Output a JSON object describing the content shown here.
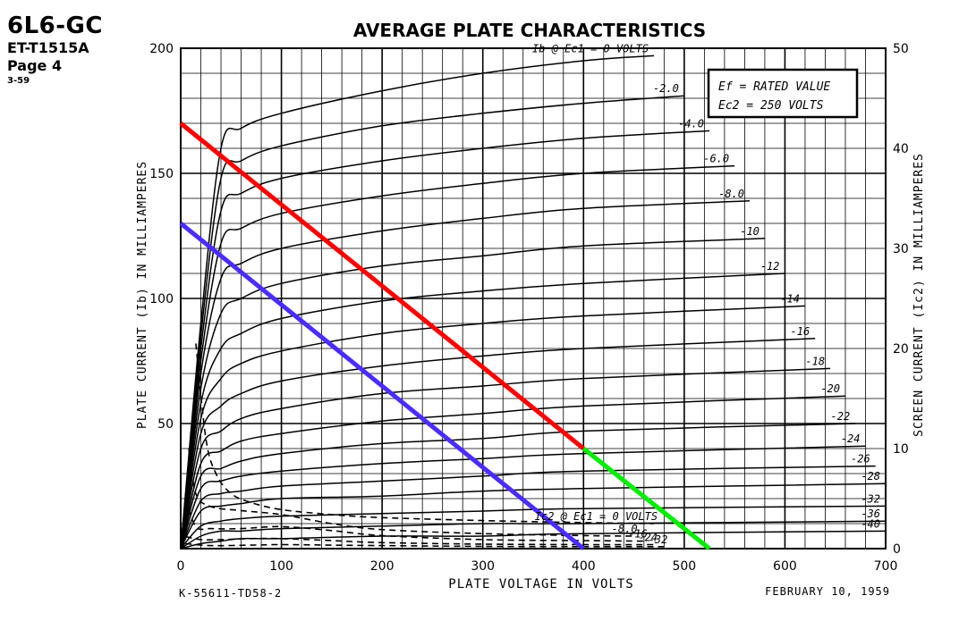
{
  "header": {
    "tube": "6L6-GC",
    "code": "ET-T1515A",
    "page": "Page 4",
    "rev": "3-59"
  },
  "footer": {
    "left": "K-55611-TD58-2",
    "right": "FEBRUARY 10, 1959"
  },
  "legend": {
    "line1": "Ef = RATED VALUE",
    "line2": "Ec2 = 250 VOLTS"
  },
  "chart_data": {
    "type": "line",
    "title": "AVERAGE PLATE CHARACTERISTICS",
    "xlabel": "PLATE VOLTAGE IN VOLTS",
    "ylabel": "PLATE CURRENT (Ib) IN MILLIAMPERES",
    "y2label": "SCREEN CURRENT (Ic2) IN MILLIAMPERES",
    "xlim": [
      0,
      700
    ],
    "ylim": [
      0,
      200
    ],
    "y2lim": [
      0,
      50
    ],
    "xticks": [
      "0",
      "100",
      "200",
      "300",
      "400",
      "500",
      "600",
      "700"
    ],
    "yticks": [
      "50",
      "100",
      "150",
      "200"
    ],
    "y2ticks": [
      "0",
      "10",
      "20",
      "30",
      "40",
      "50"
    ],
    "grid": true,
    "plate_curves": [
      {
        "label": "Ib @ Ec1 = 0 VOLTS",
        "grid_voltage": 0,
        "x": [
          0,
          20,
          40,
          60,
          100,
          200,
          300,
          400,
          470
        ],
        "y": [
          0,
          90,
          160,
          168,
          174,
          183,
          190,
          195,
          197
        ]
      },
      {
        "label": "-2.0",
        "grid_voltage": -2,
        "x": [
          0,
          20,
          40,
          60,
          100,
          200,
          300,
          400,
          500
        ],
        "y": [
          0,
          85,
          148,
          155,
          161,
          169,
          174,
          178,
          181
        ]
      },
      {
        "label": "-4.0",
        "grid_voltage": -4,
        "x": [
          0,
          20,
          40,
          60,
          100,
          200,
          300,
          400,
          525
        ],
        "y": [
          0,
          80,
          135,
          142,
          148,
          155,
          160,
          164,
          167
        ]
      },
      {
        "label": "-6.0",
        "grid_voltage": -6,
        "x": [
          0,
          20,
          40,
          60,
          100,
          200,
          300,
          400,
          550
        ],
        "y": [
          0,
          75,
          122,
          128,
          134,
          141,
          146,
          150,
          153
        ]
      },
      {
        "label": "-8.0",
        "grid_voltage": -8,
        "x": [
          0,
          20,
          40,
          60,
          100,
          200,
          300,
          400,
          565
        ],
        "y": [
          0,
          70,
          108,
          114,
          120,
          127,
          132,
          136,
          139
        ]
      },
      {
        "label": "-10",
        "grid_voltage": -10,
        "x": [
          0,
          20,
          40,
          60,
          100,
          200,
          300,
          400,
          580
        ],
        "y": [
          0,
          64,
          94,
          100,
          106,
          113,
          117,
          121,
          124
        ]
      },
      {
        "label": "-12",
        "grid_voltage": -12,
        "x": [
          0,
          20,
          40,
          60,
          100,
          200,
          300,
          400,
          600
        ],
        "y": [
          0,
          58,
          80,
          86,
          92,
          99,
          103,
          106,
          110
        ]
      },
      {
        "label": "-14",
        "grid_voltage": -14,
        "x": [
          0,
          20,
          40,
          60,
          100,
          200,
          300,
          400,
          620
        ],
        "y": [
          0,
          52,
          68,
          74,
          79,
          86,
          90,
          93,
          97
        ]
      },
      {
        "label": "-16",
        "grid_voltage": -16,
        "x": [
          0,
          20,
          40,
          60,
          100,
          200,
          300,
          400,
          630
        ],
        "y": [
          0,
          46,
          57,
          62,
          67,
          73,
          77,
          80,
          84
        ]
      },
      {
        "label": "-18",
        "grid_voltage": -18,
        "x": [
          0,
          20,
          40,
          60,
          100,
          200,
          300,
          400,
          645
        ],
        "y": [
          0,
          40,
          47,
          52,
          56,
          62,
          65,
          68,
          72
        ]
      },
      {
        "label": "-20",
        "grid_voltage": -20,
        "x": [
          0,
          20,
          40,
          60,
          100,
          200,
          300,
          400,
          660
        ],
        "y": [
          0,
          34,
          39,
          43,
          46,
          51,
          54,
          57,
          61
        ]
      },
      {
        "label": "-22",
        "grid_voltage": -22,
        "x": [
          0,
          20,
          40,
          60,
          100,
          200,
          300,
          400,
          670
        ],
        "y": [
          0,
          29,
          32,
          35,
          38,
          42,
          44,
          47,
          50
        ]
      },
      {
        "label": "-24",
        "grid_voltage": -24,
        "x": [
          0,
          20,
          40,
          60,
          100,
          200,
          300,
          400,
          680
        ],
        "y": [
          0,
          24,
          27,
          29,
          31,
          34,
          36,
          38,
          41
        ]
      },
      {
        "label": "-26",
        "grid_voltage": -26,
        "x": [
          0,
          20,
          40,
          60,
          100,
          200,
          300,
          400,
          690
        ],
        "y": [
          0,
          19,
          22,
          23,
          25,
          27,
          29,
          31,
          33
        ]
      },
      {
        "label": "-28",
        "grid_voltage": -28,
        "x": [
          0,
          20,
          40,
          60,
          100,
          200,
          300,
          400,
          700
        ],
        "y": [
          0,
          15,
          17,
          18,
          20,
          21,
          23,
          24,
          26
        ]
      },
      {
        "label": "-32",
        "grid_voltage": -32,
        "x": [
          0,
          20,
          40,
          60,
          100,
          200,
          300,
          400,
          700
        ],
        "y": [
          0,
          9,
          11,
          12,
          13,
          14,
          15,
          16,
          17
        ]
      },
      {
        "label": "-36",
        "grid_voltage": -36,
        "x": [
          0,
          20,
          40,
          60,
          100,
          200,
          300,
          400,
          700
        ],
        "y": [
          0,
          5,
          7,
          7,
          8,
          9,
          10,
          10,
          11
        ]
      },
      {
        "label": "-40",
        "grid_voltage": -40,
        "x": [
          0,
          20,
          40,
          60,
          100,
          200,
          300,
          400,
          700
        ],
        "y": [
          0,
          2,
          3,
          4,
          4,
          5,
          5,
          6,
          7
        ]
      }
    ],
    "screen_curves": [
      {
        "label": "Ic2 @ Ec1 = 0 VOLTS",
        "style": "dashed",
        "x": [
          15,
          25,
          35,
          50,
          70,
          100,
          150,
          200,
          300,
          400,
          470
        ],
        "y": [
          20.5,
          11,
          7.5,
          5.5,
          4.6,
          3.9,
          3.4,
          3.1,
          2.8,
          2.6,
          2.5
        ]
      },
      {
        "label": "-8.0",
        "style": "dashed",
        "x": [
          8,
          15,
          30,
          60,
          100,
          150,
          200,
          300,
          400,
          450
        ],
        "y": [
          10,
          5.5,
          4.2,
          3.8,
          3.4,
          2.5,
          1.9,
          1.5,
          1.3,
          1.25
        ]
      },
      {
        "label": "-16",
        "style": "dashed",
        "x": [
          5,
          15,
          30,
          60,
          100,
          150,
          200,
          300,
          400,
          460
        ],
        "y": [
          5,
          2.2,
          2.0,
          2.0,
          2.2,
          1.8,
          1.3,
          0.9,
          0.8,
          0.75
        ]
      },
      {
        "label": "-24",
        "style": "dashed",
        "x": [
          5,
          20,
          40,
          70,
          100,
          150,
          200,
          300,
          400,
          470
        ],
        "y": [
          1.2,
          0.9,
          0.9,
          1.0,
          1.0,
          0.8,
          0.6,
          0.45,
          0.4,
          0.4
        ]
      },
      {
        "label": "-32",
        "style": "dashed",
        "x": [
          5,
          30,
          70,
          100,
          150,
          200,
          300,
          400,
          480
        ],
        "y": [
          0.5,
          0.3,
          0.35,
          0.4,
          0.35,
          0.3,
          0.22,
          0.2,
          0.2
        ]
      }
    ],
    "load_lines": [
      {
        "color": "#ff0000",
        "x": [
          0,
          400
        ],
        "y": [
          170,
          40
        ]
      },
      {
        "color": "#00ee00",
        "x": [
          400,
          525
        ],
        "y": [
          40,
          0
        ]
      },
      {
        "color": "#4a2cff",
        "x": [
          0,
          400
        ],
        "y": [
          130,
          0
        ]
      }
    ]
  }
}
